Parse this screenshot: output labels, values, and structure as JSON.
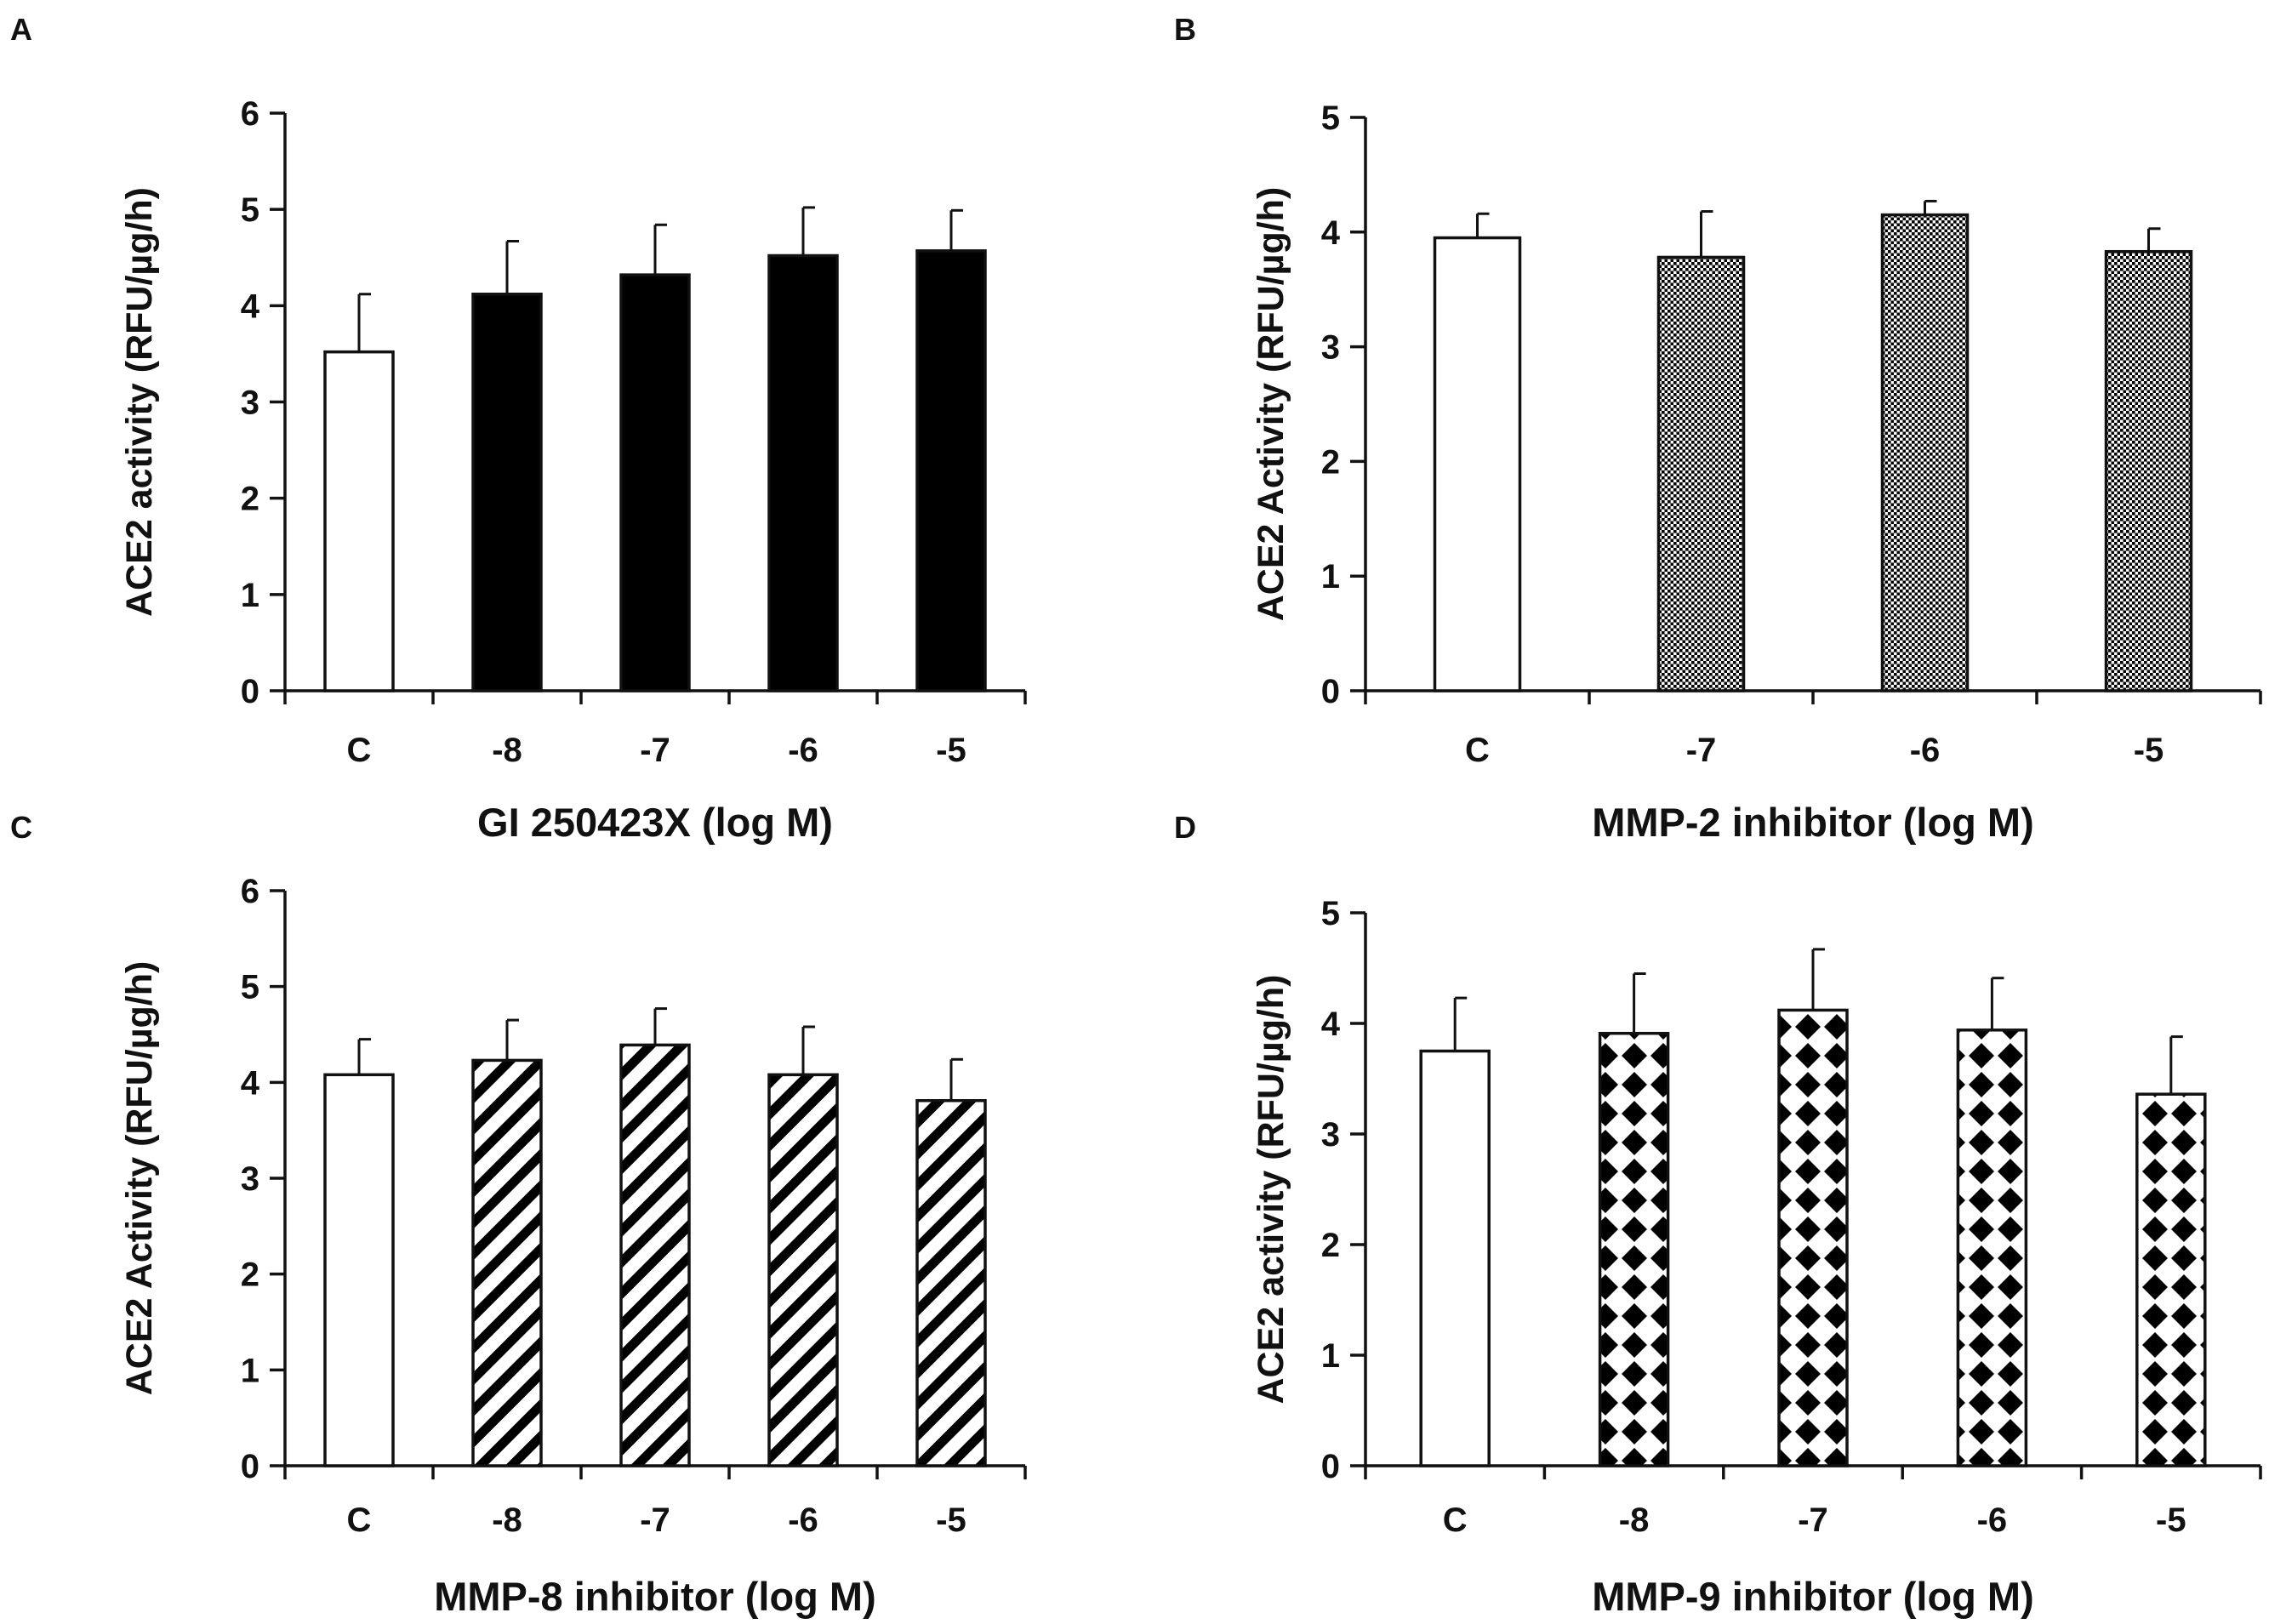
{
  "colors": {
    "ink": "#111111",
    "fill_control": "#ffffff",
    "fill_solid": "#000000"
  },
  "chart_data": [
    {
      "panel": "A",
      "type": "bar",
      "title": "",
      "xlabel": "GI 250423X (log M)",
      "ylabel": "ACE2 activity (RFU/µg/h)",
      "categories": [
        "C",
        "-8",
        "-7",
        "-6",
        "-5"
      ],
      "values": [
        3.52,
        4.12,
        4.32,
        4.52,
        4.57
      ],
      "errors": [
        0.6,
        0.55,
        0.52,
        0.5,
        0.42
      ],
      "fills": [
        "white",
        "solid",
        "solid",
        "solid",
        "solid"
      ],
      "ylim": [
        0,
        6
      ],
      "yticks": [
        "0",
        "1",
        "2",
        "3",
        "4",
        "5",
        "6"
      ],
      "grid": false
    },
    {
      "panel": "B",
      "type": "bar",
      "title": "",
      "xlabel": "MMP-2 inhibitor (log M)",
      "ylabel": "ACE2 Activity (RFU/µg/h)",
      "categories": [
        "C",
        "-7",
        "-6",
        "-5"
      ],
      "values": [
        3.95,
        3.78,
        4.15,
        3.83
      ],
      "errors": [
        0.21,
        0.4,
        0.12,
        0.2
      ],
      "fills": [
        "white",
        "dots",
        "dots",
        "dots"
      ],
      "ylim": [
        0,
        5
      ],
      "yticks": [
        "0",
        "1",
        "2",
        "3",
        "4",
        "5"
      ],
      "grid": false
    },
    {
      "panel": "C",
      "type": "bar",
      "title": "",
      "xlabel": "MMP-8 inhibitor (log M)",
      "ylabel": "ACE2 Activity (RFU/µg/h)",
      "categories": [
        "C",
        "-8",
        "-7",
        "-6",
        "-5"
      ],
      "values": [
        4.08,
        4.23,
        4.39,
        4.08,
        3.81
      ],
      "errors": [
        0.37,
        0.42,
        0.38,
        0.5,
        0.43
      ],
      "fills": [
        "white",
        "stripes",
        "stripes",
        "stripes",
        "stripes"
      ],
      "ylim": [
        0,
        6
      ],
      "yticks": [
        "0",
        "1",
        "2",
        "3",
        "4",
        "5",
        "6"
      ],
      "grid": false
    },
    {
      "panel": "D",
      "type": "bar",
      "title": "",
      "xlabel": "MMP-9 inhibitor (log M)",
      "ylabel": "ACE2 activity (RFU/µg/h)",
      "categories": [
        "C",
        "-8",
        "-7",
        "-6",
        "-5"
      ],
      "values": [
        3.75,
        3.91,
        4.12,
        3.94,
        3.36
      ],
      "errors": [
        0.48,
        0.54,
        0.55,
        0.47,
        0.52
      ],
      "fills": [
        "white",
        "diamonds",
        "diamonds",
        "diamonds",
        "diamonds"
      ],
      "ylim": [
        0,
        5
      ],
      "yticks": [
        "0",
        "1",
        "2",
        "3",
        "4",
        "5"
      ],
      "grid": false
    }
  ]
}
